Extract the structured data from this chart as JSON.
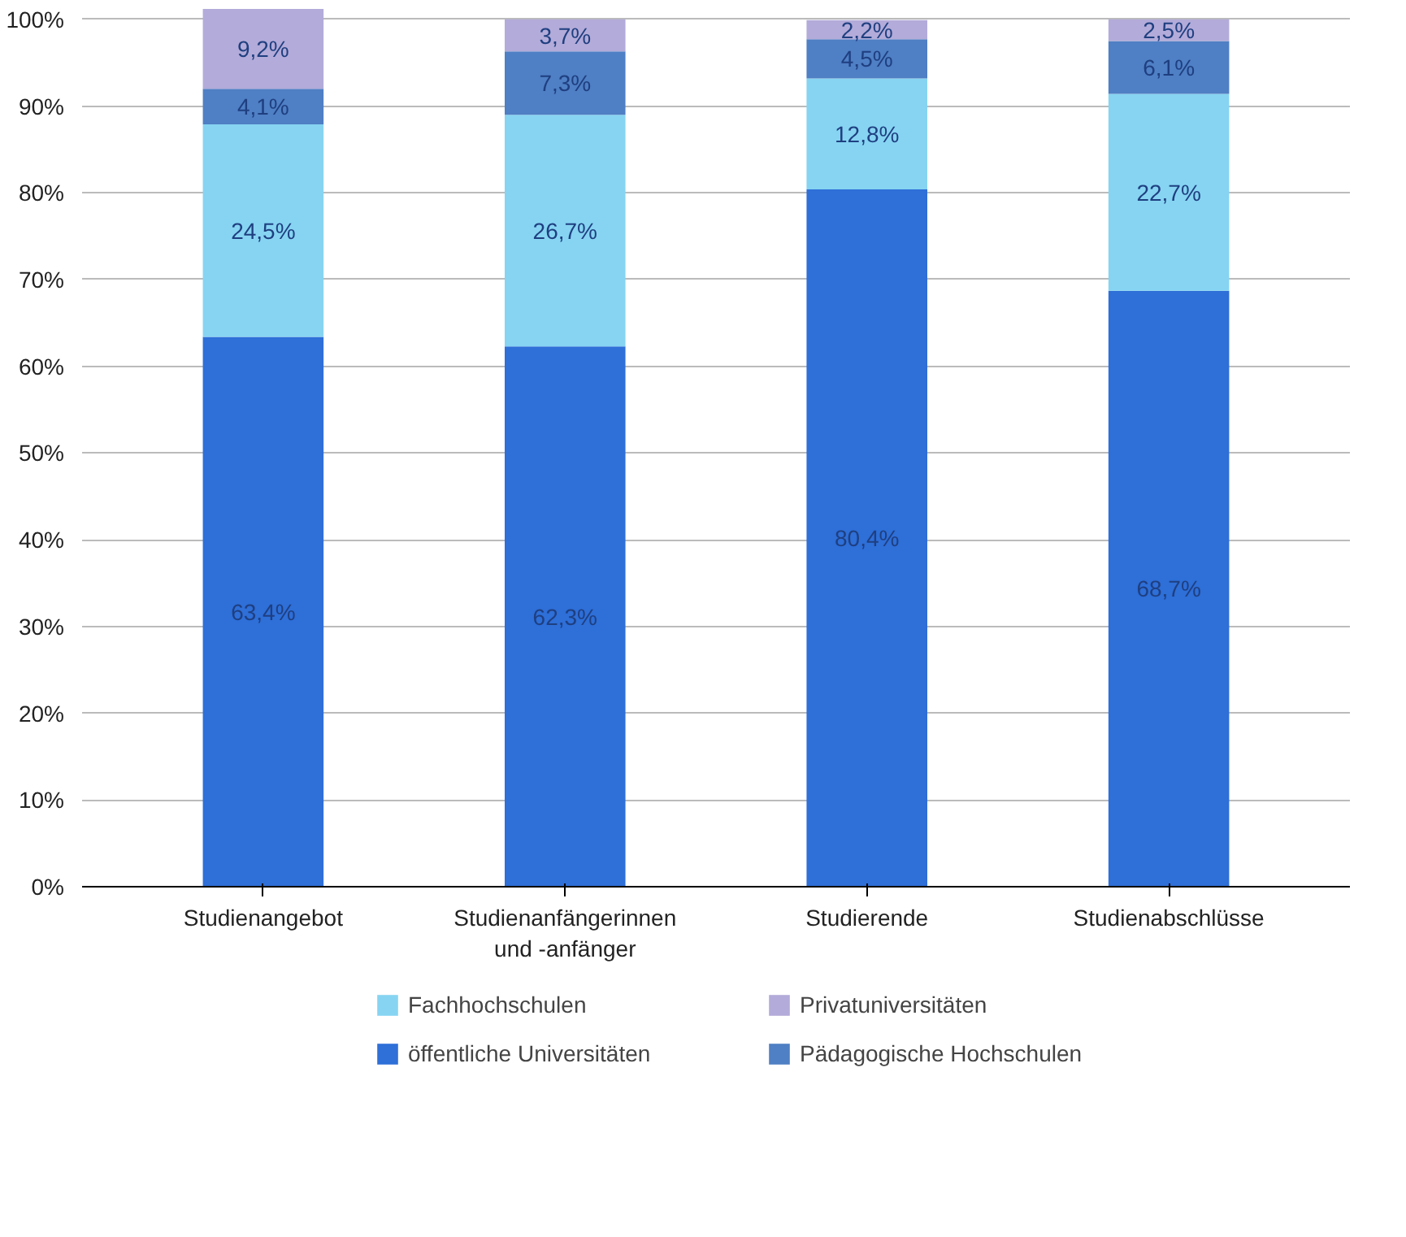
{
  "chart_data": {
    "type": "bar",
    "stacked": true,
    "categories": [
      "Studienangebot",
      "Studienanfängerinnen\nund -anfänger",
      "Studierende",
      "Studienabschlüsse"
    ],
    "series": [
      {
        "name": "öffentliche Universitäten",
        "color": "#2e6fd8",
        "values": [
          63.4,
          62.3,
          80.4,
          68.7
        ],
        "value_labels": [
          "63,4%",
          "62,3%",
          "80,4%",
          "68,7%"
        ]
      },
      {
        "name": "Fachhochschulen",
        "color": "#86d4f2",
        "values": [
          24.5,
          26.7,
          12.8,
          22.7
        ],
        "value_labels": [
          "24,5%",
          "26,7%",
          "12,8%",
          "22,7%"
        ]
      },
      {
        "name": "Pädagogische Hochschulen",
        "color": "#4f7fc4",
        "values": [
          4.1,
          7.3,
          4.5,
          6.1
        ],
        "value_labels": [
          "4,1%",
          "7,3%",
          "4,5%",
          "6,1%"
        ]
      },
      {
        "name": "Privatuniversitäten",
        "color": "#b3abd9",
        "values": [
          9.2,
          3.7,
          2.2,
          2.5
        ],
        "value_labels": [
          "9,2%",
          "3,7%",
          "2,2%",
          "2,5%"
        ]
      }
    ],
    "ylim": [
      0,
      101.2
    ],
    "yticks": [
      {
        "value": 0,
        "label": "0%"
      },
      {
        "value": 10,
        "label": "10%"
      },
      {
        "value": 20,
        "label": "20%"
      },
      {
        "value": 30,
        "label": "30%"
      },
      {
        "value": 40,
        "label": "40%"
      },
      {
        "value": 50,
        "label": "50%"
      },
      {
        "value": 60,
        "label": "60%"
      },
      {
        "value": 70,
        "label": "70%"
      },
      {
        "value": 80,
        "label": "80%"
      },
      {
        "value": 90,
        "label": "90%"
      },
      {
        "value": 100,
        "label": "100%"
      }
    ],
    "grid": "y",
    "legend": "bottom"
  }
}
